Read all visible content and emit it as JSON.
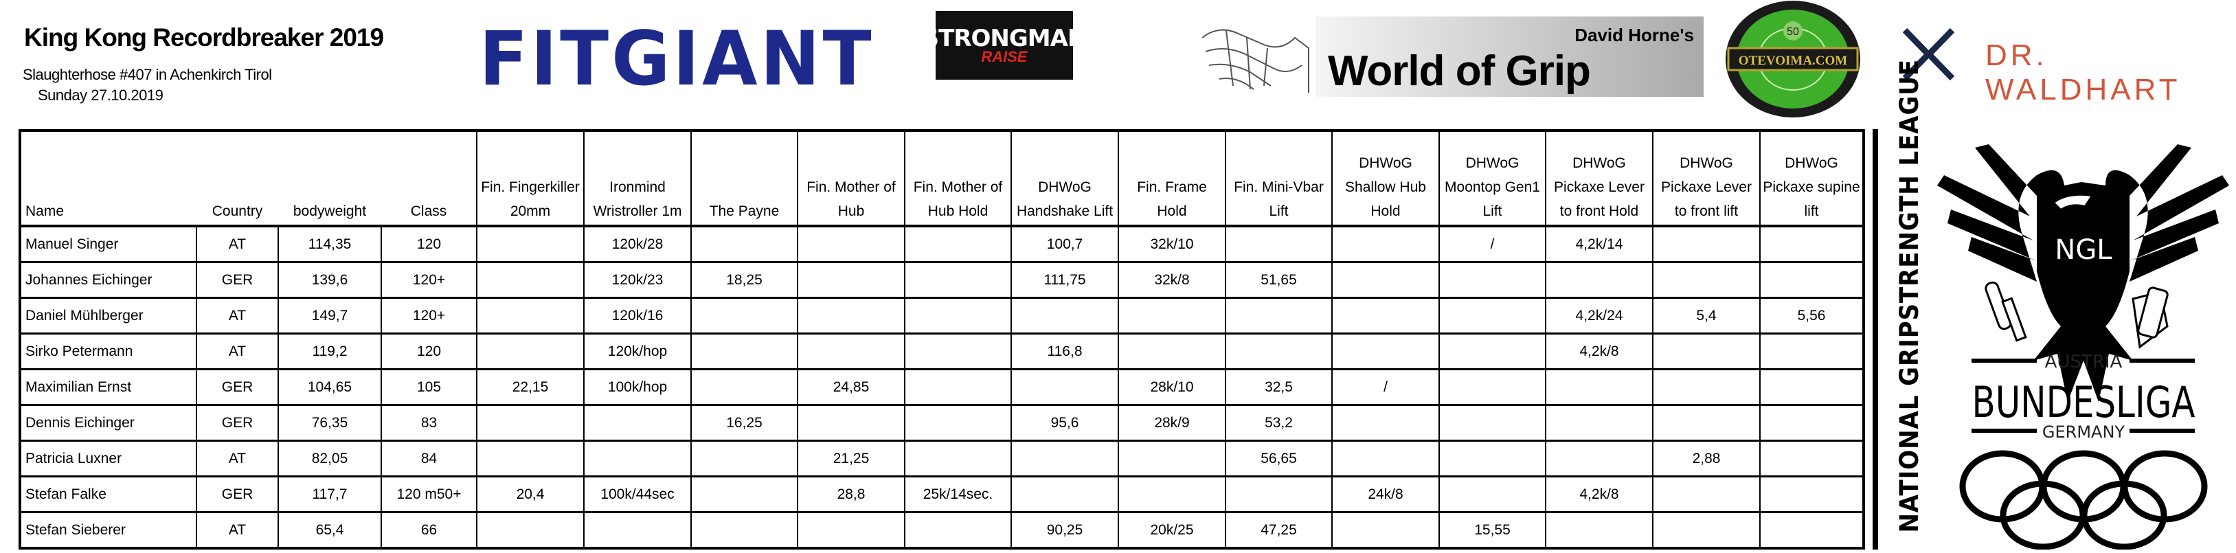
{
  "header": {
    "title": "King Kong Recordbreaker 2019",
    "subtitle": "Slaughterhose #407 in Achenkirch Tirol",
    "date": "Sunday 27.10.2019"
  },
  "sponsors": {
    "fitgiant": "FITGIANT",
    "strongman_top": "STRONGMAN",
    "strongman_bottom": "RAISE",
    "wog_top": "David Horne's",
    "wog_main": "World of Grip",
    "otevoima": "OTEVOIMA.COM",
    "otevoima_number": "50",
    "drwaldhart": "DR. WALDHART",
    "colors": {
      "fitgiant": "#1d2a8c",
      "drwaldhart": "#d2553a",
      "otevoima_green": "#3fae2a"
    }
  },
  "table": {
    "columns": [
      "Name",
      "Country",
      "bodyweight",
      "Class",
      "Fin. Fingerkiller 20mm",
      "Ironmind Wristroller 1m",
      "The Payne",
      "Fin. Mother of Hub",
      "Fin. Mother of Hub Hold",
      "DHWoG Handshake Lift",
      "Fin. Frame Hold",
      "Fin. Mini-Vbar Lift",
      "DHWoG Shallow Hub Hold",
      "DHWoG Moontop Gen1 Lift",
      "DHWoG Pickaxe Lever to front Hold",
      "DHWoG Pickaxe Lever to front lift",
      "DHWoG Pickaxe supine lift"
    ],
    "rows": [
      [
        "Manuel Singer",
        "AT",
        "114,35",
        "120",
        "",
        "120k/28",
        "",
        "",
        "",
        "100,7",
        "32k/10",
        "",
        "",
        "/",
        "4,2k/14",
        "",
        ""
      ],
      [
        "Johannes Eichinger",
        "GER",
        "139,6",
        "120+",
        "",
        "120k/23",
        "18,25",
        "",
        "",
        "111,75",
        "32k/8",
        "51,65",
        "",
        "",
        "",
        "",
        ""
      ],
      [
        "Daniel Mühlberger",
        "AT",
        "149,7",
        "120+",
        "",
        "120k/16",
        "",
        "",
        "",
        "",
        "",
        "",
        "",
        "",
        "4,2k/24",
        "5,4",
        "5,56"
      ],
      [
        "Sirko Petermann",
        "AT",
        "119,2",
        "120",
        "",
        "120k/hop",
        "",
        "",
        "",
        "116,8",
        "",
        "",
        "",
        "",
        "4,2k/8",
        "",
        ""
      ],
      [
        "Maximilian Ernst",
        "GER",
        "104,65",
        "105",
        "22,15",
        "100k/hop",
        "",
        "24,85",
        "",
        "",
        "28k/10",
        "32,5",
        "/",
        "",
        "",
        "",
        ""
      ],
      [
        "Dennis Eichinger",
        "GER",
        "76,35",
        "83",
        "",
        "",
        "16,25",
        "",
        "",
        "95,6",
        "28k/9",
        "53,2",
        "",
        "",
        "",
        "",
        ""
      ],
      [
        "Patricia Luxner",
        "AT",
        "82,05",
        "84",
        "",
        "",
        "",
        "21,25",
        "",
        "",
        "",
        "56,65",
        "",
        "",
        "",
        "2,88",
        ""
      ],
      [
        "Stefan Falke",
        "GER",
        "117,7",
        "120 m50+",
        "20,4",
        "100k/44sec",
        "",
        "28,8",
        "25k/14sec.",
        "",
        "",
        "",
        "24k/8",
        "",
        "4,2k/8",
        "",
        ""
      ],
      [
        "Stefan Sieberer",
        "AT",
        "65,4",
        "66",
        "",
        "",
        "",
        "",
        "",
        "90,25",
        "20k/25",
        "47,25",
        "",
        "15,55",
        "",
        "",
        ""
      ]
    ]
  },
  "league": {
    "vertical_text": "NATIONAL GRIPSTRENGTH LEAGUE",
    "emblem": "NGL",
    "top": "AUSTRIA",
    "main": "BUNDESLIGA",
    "bottom": "GERMANY"
  }
}
